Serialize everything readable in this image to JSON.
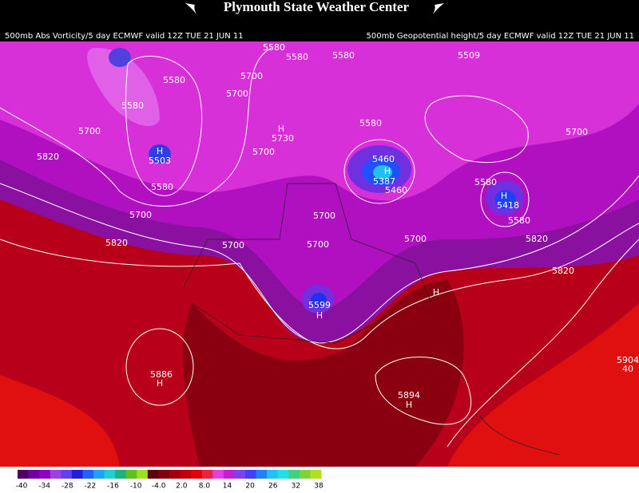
{
  "header": {
    "title": "Plymouth State Weather Center",
    "left_subtitle": "500mb Abs Vorticity/5 day ECMWF valid 12Z TUE 21 JUN 11",
    "right_subtitle": "500mb Geopotential height/5 day ECMWF valid 12Z TUE 21 JUN 11"
  },
  "map": {
    "labels": [
      "5580",
      "5580",
      "5580",
      "5509",
      "5580",
      "5700",
      "5700",
      "5580",
      "5700",
      "H",
      "5730",
      "5820",
      "H",
      "5503",
      "5700",
      "5580",
      "5460",
      "H",
      "5387",
      "5460",
      "5580",
      "5580",
      "H",
      "5418",
      "5580",
      "5700",
      "5700",
      "5700",
      "5700",
      "5700",
      "5700",
      "5820",
      "5820",
      "5820",
      "H",
      "5599",
      "H",
      "5886",
      "H",
      "5894",
      "H",
      "5904",
      "40"
    ]
  },
  "colorbar": {
    "labels": [
      "-40",
      "-34",
      "-28",
      "-22",
      "-16",
      "-10",
      "-4.0",
      "2.0",
      "8.0",
      "14",
      "20",
      "26",
      "32",
      "38"
    ]
  }
}
